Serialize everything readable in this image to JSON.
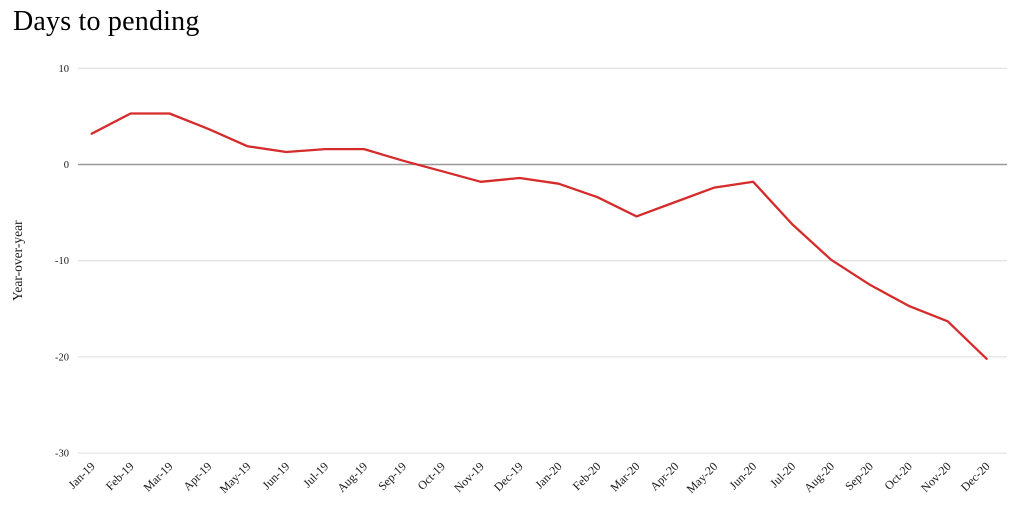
{
  "title": "Days to pending",
  "colors": {
    "line": "#d62b2b",
    "gridline": "#dcdcdc",
    "zero_line": "#9a9a9a",
    "text": "#1a1a1a"
  },
  "chart_data": {
    "type": "line",
    "title": "Days to pending",
    "xlabel": "",
    "ylabel": "Year-over-year",
    "ylim": [
      -30,
      10
    ],
    "yticks": [
      10,
      0,
      -10,
      -20,
      -30
    ],
    "grid": true,
    "legend_position": "none",
    "categories": [
      "Jan-19",
      "Feb-19",
      "Mar-19",
      "Apr-19",
      "May-19",
      "Jun-19",
      "Jul-19",
      "Aug-19",
      "Sep-19",
      "Oct-19",
      "Nov-19",
      "Dec-19",
      "Jan-20",
      "Feb-20",
      "Mar-20",
      "Apr-20",
      "May-20",
      "Jun-20",
      "Jul-20",
      "Aug-20",
      "Sep-20",
      "Oct-20",
      "Nov-20",
      "Dec-20"
    ],
    "series": [
      {
        "name": "Days to pending YoY",
        "color": "#d62b2b",
        "values": [
          3.2,
          5.3,
          5.3,
          3.7,
          1.9,
          1.3,
          1.6,
          1.6,
          0.4,
          -0.7,
          -1.8,
          -1.4,
          -2.0,
          -3.4,
          -5.4,
          -3.9,
          -2.4,
          -1.8,
          -6.2,
          -9.9,
          -12.5,
          -14.7,
          -16.3,
          -20.2
        ]
      }
    ]
  }
}
